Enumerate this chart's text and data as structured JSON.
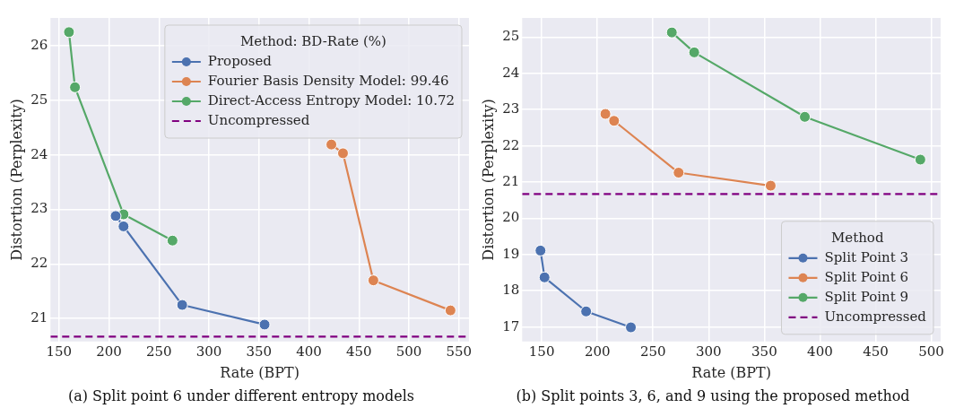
{
  "chart_data": [
    {
      "type": "line",
      "xlabel": "Rate (BPT)",
      "ylabel": "Distortion (Perplexity)",
      "legend_title": "Method: BD-Rate (%)",
      "xlim": [
        141.5,
        560
      ],
      "ylim": [
        20.58,
        26.51
      ],
      "xticks": [
        150,
        200,
        250,
        300,
        350,
        400,
        450,
        500,
        550
      ],
      "yticks": [
        21,
        22,
        23,
        24,
        25,
        26
      ],
      "grid": true,
      "legend": "top right",
      "marker": "circle",
      "line_style": "solid",
      "series": [
        {
          "name": "Proposed",
          "color": "#4c72b0",
          "x": [
            206.7,
            214.6,
            273.2,
            355.6
          ],
          "values": [
            22.88,
            22.69,
            21.25,
            20.89
          ]
        },
        {
          "name": "Fourier Basis Density Model: 99.46",
          "color": "#dd8452",
          "x": [
            422.4,
            434,
            464.4,
            541.5
          ],
          "values": [
            24.19,
            24.03,
            21.7,
            21.15
          ]
        },
        {
          "name": "Direct-Access Entropy Model: 10.72",
          "color": "#55a868",
          "x": [
            160,
            166,
            214.6,
            263.5
          ],
          "values": [
            26.25,
            25.24,
            22.91,
            22.43
          ]
        }
      ],
      "ref_lines": [
        {
          "axis": "y",
          "value": 20.67,
          "label": "Uncompressed",
          "color": "#800080",
          "line_style": "dashed"
        }
      ],
      "annotations": [
        "(a) Split point 6 under different entropy models"
      ]
    },
    {
      "type": "line",
      "xlabel": "Rate (BPT)",
      "ylabel": "Distortion (Perplexity)",
      "legend_title": "Method",
      "xlim": [
        132.4,
        508.4
      ],
      "ylim": [
        16.6,
        25.53
      ],
      "xticks": [
        150,
        200,
        250,
        300,
        350,
        400,
        450,
        500
      ],
      "yticks": [
        17,
        18,
        19,
        20,
        21,
        22,
        23,
        24,
        25
      ],
      "grid": true,
      "legend": "bottom right",
      "marker": "circle",
      "line_style": "solid",
      "series": [
        {
          "name": "Split Point 3",
          "color": "#4c72b0",
          "x": [
            148.9,
            152.5,
            189.9,
            230.1
          ],
          "values": [
            19.11,
            18.37,
            17.43,
            16.99
          ]
        },
        {
          "name": "Split Point 6",
          "color": "#dd8452",
          "x": [
            207.2,
            215,
            273,
            355.7
          ],
          "values": [
            22.88,
            22.69,
            21.26,
            20.9
          ]
        },
        {
          "name": "Split Point 9",
          "color": "#55a868",
          "x": [
            266.9,
            287,
            386.4,
            490.2
          ],
          "values": [
            25.13,
            24.58,
            22.8,
            21.62
          ]
        }
      ],
      "ref_lines": [
        {
          "axis": "y",
          "value": 20.67,
          "label": "Uncompressed",
          "color": "#800080",
          "line_style": "dashed"
        }
      ],
      "annotations": [
        "(b) Split points 3, 6, and 9 using the proposed method"
      ]
    }
  ]
}
